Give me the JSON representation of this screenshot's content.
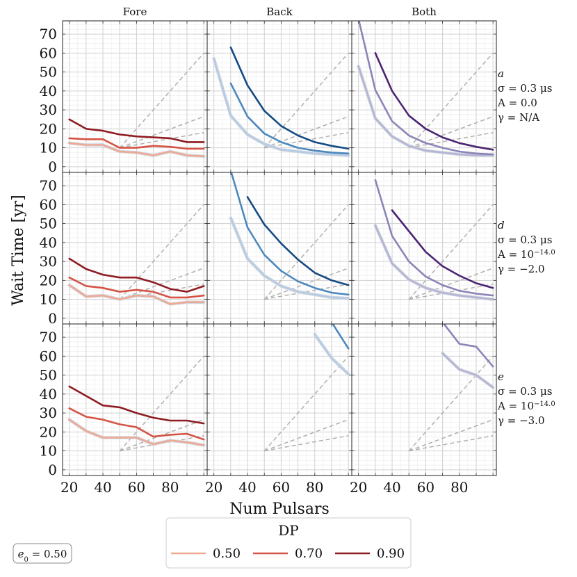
{
  "chart_data": {
    "type": "line",
    "ylabel": "Wait Time [yr]",
    "xlabel": "Num Pulsars",
    "xlim": [
      16,
      102
    ],
    "ylim": [
      -3,
      77
    ],
    "x_ticks": [
      20,
      40,
      60,
      80
    ],
    "y_ticks": [
      0,
      10,
      20,
      30,
      40,
      50,
      60,
      70
    ],
    "columns": [
      "Fore",
      "Back",
      "Both"
    ],
    "rows": [
      {
        "letter": "a",
        "lines": [
          "σ = 0.3 μs",
          "A = 0.0",
          "γ = N/A"
        ]
      },
      {
        "letter": "d",
        "lines": [
          "σ = 0.3 μs",
          "A = 10^−14.0",
          "γ = −2.0"
        ]
      },
      {
        "letter": "e",
        "lines": [
          "σ = 0.3 μs",
          "A = 10^−14.0",
          "γ = −3.0"
        ]
      }
    ],
    "reference_lines": [
      {
        "x": [
          50,
          100
        ],
        "y": [
          10,
          60
        ]
      },
      {
        "x": [
          50,
          100
        ],
        "y": [
          10,
          26.5
        ]
      },
      {
        "x": [
          50,
          100
        ],
        "y": [
          10,
          18
        ]
      }
    ],
    "colors": {
      "Fore": [
        "#eeaa95",
        "#d55345",
        "#8e1c22"
      ],
      "Back": [
        "#b7cce2",
        "#4c88bd",
        "#154a82"
      ],
      "Both": [
        "#b6b5d4",
        "#8b84b8",
        "#4b2472"
      ]
    },
    "panels": [
      [
        {
          "series": [
            {
              "dp": "0.50",
              "x": [
                20,
                30,
                40,
                50,
                60,
                70,
                80,
                90,
                100
              ],
              "y": [
                12.5,
                11.5,
                11.5,
                8,
                7.5,
                6,
                8,
                6,
                5.5
              ]
            },
            {
              "dp": "0.70",
              "x": [
                20,
                30,
                40,
                50,
                60,
                70,
                80,
                90,
                100
              ],
              "y": [
                15,
                14.5,
                14.5,
                10,
                10,
                11,
                10.5,
                9.5,
                9.5
              ]
            },
            {
              "dp": "0.90",
              "x": [
                20,
                30,
                40,
                50,
                60,
                70,
                80,
                90,
                100
              ],
              "y": [
                25,
                20,
                19,
                17,
                16,
                15.5,
                15,
                13,
                13
              ]
            }
          ]
        },
        {
          "series": [
            {
              "dp": "0.50",
              "x": [
                20,
                30,
                40,
                50,
                60,
                70,
                80,
                90,
                100
              ],
              "y": [
                57,
                27,
                17,
                12,
                9,
                8,
                7,
                6.5,
                6
              ]
            },
            {
              "dp": "0.70",
              "x": [
                30,
                40,
                50,
                60,
                70,
                80,
                90,
                100
              ],
              "y": [
                44,
                26.5,
                17.5,
                13,
                10,
                8.5,
                7.5,
                7
              ]
            },
            {
              "dp": "0.90",
              "x": [
                30,
                40,
                50,
                60,
                70,
                80,
                90,
                100
              ],
              "y": [
                63,
                43,
                29.5,
                21.5,
                16.5,
                13,
                11,
                9.5
              ]
            }
          ]
        },
        {
          "series": [
            {
              "dp": "0.50",
              "x": [
                20,
                30,
                40,
                50,
                60,
                70,
                80,
                90,
                100
              ],
              "y": [
                53,
                25.5,
                16,
                11,
                8.5,
                7.5,
                6.5,
                6,
                6
              ]
            },
            {
              "dp": "0.70",
              "x": [
                20,
                30,
                40,
                50,
                60,
                70,
                80,
                90,
                100
              ],
              "y": [
                78,
                40.5,
                24,
                16.5,
                12.5,
                10,
                8,
                7,
                6.5
              ]
            },
            {
              "dp": "0.90",
              "x": [
                30,
                40,
                50,
                60,
                70,
                80,
                90,
                100
              ],
              "y": [
                60,
                40,
                27,
                20,
                15.5,
                12.5,
                10.5,
                9
              ]
            }
          ]
        }
      ],
      [
        {
          "series": [
            {
              "dp": "0.50",
              "x": [
                20,
                30,
                40,
                50,
                60,
                70,
                80,
                90,
                100
              ],
              "y": [
                17.5,
                11.5,
                12,
                10,
                12,
                11.5,
                7.5,
                8.5,
                8.5
              ]
            },
            {
              "dp": "0.70",
              "x": [
                20,
                30,
                40,
                50,
                60,
                70,
                80,
                90,
                100
              ],
              "y": [
                21.5,
                17,
                16,
                14,
                15,
                14,
                11,
                11,
                12
              ]
            },
            {
              "dp": "0.90",
              "x": [
                20,
                30,
                40,
                50,
                60,
                70,
                80,
                90,
                100
              ],
              "y": [
                31.5,
                26,
                23,
                21.5,
                21.5,
                19,
                15.5,
                14,
                17
              ]
            }
          ]
        },
        {
          "series": [
            {
              "dp": "0.50",
              "x": [
                30,
                40,
                50,
                60,
                70,
                80,
                90,
                100
              ],
              "y": [
                53,
                31.5,
                22.5,
                17,
                14,
                12.5,
                11,
                10.5
              ]
            },
            {
              "dp": "0.70",
              "x": [
                30,
                40,
                50,
                60,
                70,
                80,
                90,
                100
              ],
              "y": [
                78,
                48,
                33.5,
                25,
                19.5,
                16,
                13.5,
                12.5
              ]
            },
            {
              "dp": "0.90",
              "x": [
                40,
                50,
                60,
                70,
                80,
                90,
                100
              ],
              "y": [
                64,
                49.5,
                39.5,
                31,
                24,
                20,
                17.5
              ]
            }
          ]
        },
        {
          "series": [
            {
              "dp": "0.50",
              "x": [
                30,
                40,
                50,
                60,
                70,
                80,
                90,
                100
              ],
              "y": [
                49,
                29,
                20.5,
                16,
                13.5,
                12,
                11,
                10
              ]
            },
            {
              "dp": "0.70",
              "x": [
                30,
                40,
                50,
                60,
                70,
                80,
                90,
                100
              ],
              "y": [
                73,
                43.5,
                30,
                22,
                17.5,
                14.5,
                13,
                12
              ]
            },
            {
              "dp": "0.90",
              "x": [
                40,
                50,
                60,
                70,
                80,
                90,
                100
              ],
              "y": [
                57,
                46,
                35,
                27.5,
                22.5,
                18.5,
                16
              ]
            }
          ]
        }
      ],
      [
        {
          "series": [
            {
              "dp": "0.50",
              "x": [
                20,
                30,
                40,
                50,
                60,
                70,
                80,
                90,
                100
              ],
              "y": [
                26.5,
                20.5,
                17,
                17,
                17,
                13.5,
                15.5,
                14.5,
                13
              ]
            },
            {
              "dp": "0.70",
              "x": [
                20,
                30,
                40,
                50,
                60,
                70,
                80,
                90,
                100
              ],
              "y": [
                32.5,
                28,
                26.5,
                24,
                22.5,
                17.5,
                18.5,
                19,
                16
              ]
            },
            {
              "dp": "0.90",
              "x": [
                20,
                30,
                40,
                50,
                60,
                70,
                80,
                90,
                100
              ],
              "y": [
                44,
                39,
                34,
                33,
                30,
                27.5,
                26,
                26,
                24.5
              ]
            }
          ]
        },
        {
          "series": [
            {
              "dp": "0.50",
              "x": [
                80,
                90,
                100
              ],
              "y": [
                71.5,
                59,
                50.5
              ]
            },
            {
              "dp": "0.70",
              "x": [
                90,
                100
              ],
              "y": [
                78,
                64
              ]
            }
          ]
        },
        {
          "series": [
            {
              "dp": "0.50",
              "x": [
                70,
                80,
                90,
                100
              ],
              "y": [
                61.5,
                53,
                50,
                43.5
              ]
            },
            {
              "dp": "0.70",
              "x": [
                70,
                80,
                90,
                100
              ],
              "y": [
                78,
                66.5,
                65,
                54.5
              ]
            }
          ]
        }
      ]
    ],
    "legend": {
      "title": "DP",
      "entries": [
        {
          "label": "0.50",
          "color": "#eeaa95"
        },
        {
          "label": "0.70",
          "color": "#d55345"
        },
        {
          "label": "0.90",
          "color": "#8e1c22"
        }
      ],
      "placement": "bottom-center"
    },
    "annotation": "e0 = 0.50"
  }
}
